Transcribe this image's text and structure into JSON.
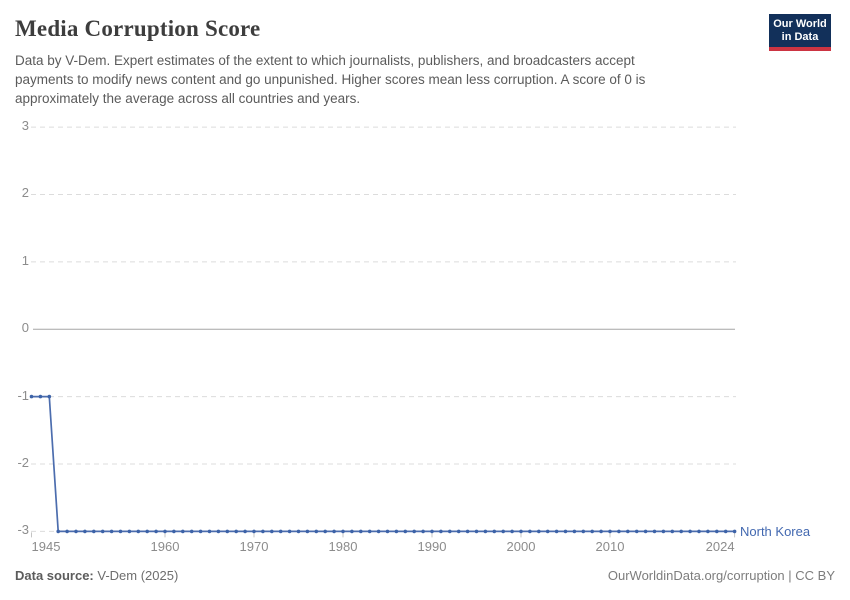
{
  "header": {
    "title": "Media Corruption Score",
    "subtitle_lines": [
      "Data by V-Dem. Expert estimates of the extent to which journalists, publishers, and broadcasters accept",
      "payments to modify news content and go unpunished. Higher scores mean less corruption. A score of 0 is",
      "approximately the average across all countries and years."
    ],
    "logo": {
      "line1": "Our World",
      "line2": "in Data"
    }
  },
  "chart_data": {
    "type": "line",
    "title": "Media Corruption Score",
    "x": [
      1945,
      1946,
      1947,
      1948,
      1949,
      1950,
      1951,
      1952,
      1953,
      1954,
      1955,
      1956,
      1957,
      1958,
      1959,
      1960,
      1961,
      1962,
      1963,
      1964,
      1965,
      1966,
      1967,
      1968,
      1969,
      1970,
      1971,
      1972,
      1973,
      1974,
      1975,
      1976,
      1977,
      1978,
      1979,
      1980,
      1981,
      1982,
      1983,
      1984,
      1985,
      1986,
      1987,
      1988,
      1989,
      1990,
      1991,
      1992,
      1993,
      1994,
      1995,
      1996,
      1997,
      1998,
      1999,
      2000,
      2001,
      2002,
      2003,
      2004,
      2005,
      2006,
      2007,
      2008,
      2009,
      2010,
      2011,
      2012,
      2013,
      2014,
      2015,
      2016,
      2017,
      2018,
      2019,
      2020,
      2021,
      2022,
      2023,
      2024
    ],
    "series": [
      {
        "name": "North Korea",
        "values": [
          -1,
          -1,
          -1,
          -3,
          -3,
          -3,
          -3,
          -3,
          -3,
          -3,
          -3,
          -3,
          -3,
          -3,
          -3,
          -3,
          -3,
          -3,
          -3,
          -3,
          -3,
          -3,
          -3,
          -3,
          -3,
          -3,
          -3,
          -3,
          -3,
          -3,
          -3,
          -3,
          -3,
          -3,
          -3,
          -3,
          -3,
          -3,
          -3,
          -3,
          -3,
          -3,
          -3,
          -3,
          -3,
          -3,
          -3,
          -3,
          -3,
          -3,
          -3,
          -3,
          -3,
          -3,
          -3,
          -3,
          -3,
          -3,
          -3,
          -3,
          -3,
          -3,
          -3,
          -3,
          -3,
          -3,
          -3,
          -3,
          -3,
          -3,
          -3,
          -3,
          -3,
          -3,
          -3,
          -3,
          -3,
          -3,
          -3,
          -3
        ]
      }
    ],
    "xlim": [
      1945,
      2024
    ],
    "ylim": [
      -3,
      3
    ],
    "yticks": [
      3,
      2,
      1,
      0,
      -1,
      -2,
      -3
    ],
    "xticks": [
      1945,
      1960,
      1970,
      1980,
      1990,
      2000,
      2010,
      2024
    ],
    "grid": "horizontal dashed, solid zero line",
    "legend_position": "end-of-line label",
    "xlabel": "",
    "ylabel": "",
    "colors": {
      "line": "#4c6dae",
      "marker": "#3d63a8",
      "entity_label": "#4268b0",
      "gridline": "#dcdcdc",
      "zero_line": "#a5a5a5",
      "tick_mark": "#c4c4c4",
      "tick_label": "#8c8c8c"
    }
  },
  "footer": {
    "source_label": "Data source:",
    "source_value": " V-Dem (2025)",
    "rights": "OurWorldinData.org/corruption | CC BY"
  },
  "brand_colors": {
    "logo_navy": "#12305a",
    "logo_red": "#cc3442"
  }
}
